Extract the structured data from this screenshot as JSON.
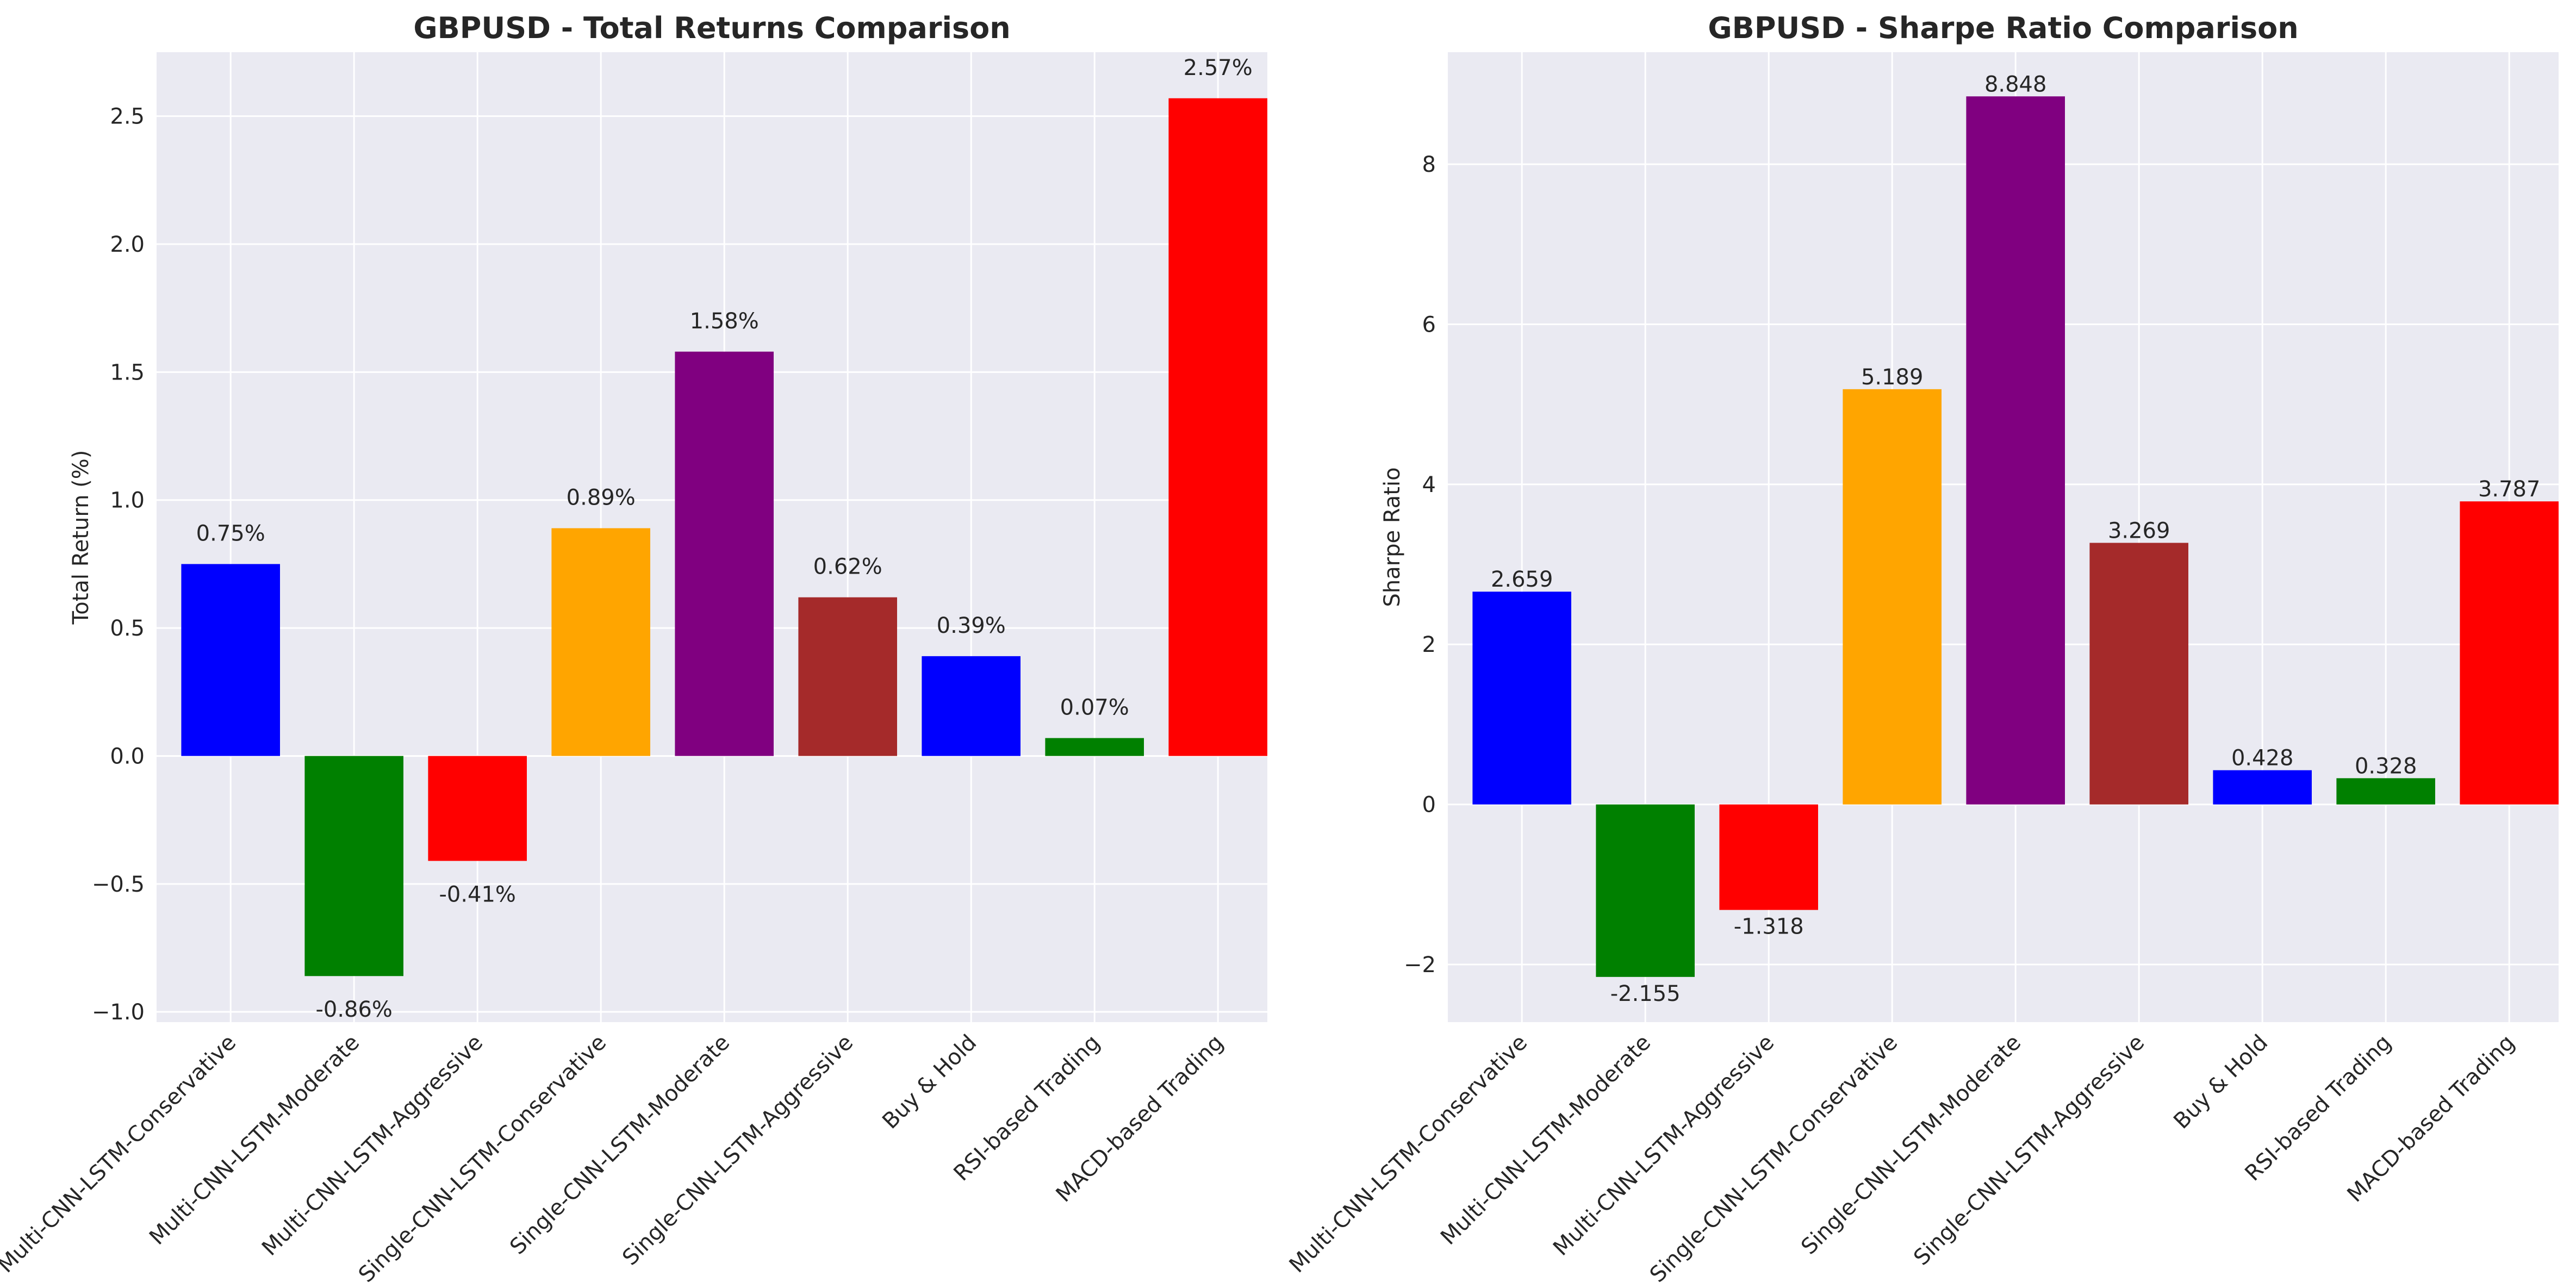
{
  "chart_data": [
    {
      "type": "bar",
      "title": "GBPUSD - Total Returns Comparison",
      "xlabel": "",
      "ylabel": "Total Return (%)",
      "categories": [
        "Multi-CNN-LSTM-Conservative",
        "Multi-CNN-LSTM-Moderate",
        "Multi-CNN-LSTM-Aggressive",
        "Single-CNN-LSTM-Conservative",
        "Single-CNN-LSTM-Moderate",
        "Single-CNN-LSTM-Aggressive",
        "Buy & Hold",
        "RSI-based Trading",
        "MACD-based Trading"
      ],
      "values": [
        0.75,
        -0.86,
        -0.41,
        0.89,
        1.58,
        0.62,
        0.39,
        0.07,
        2.57
      ],
      "value_labels": [
        "0.75%",
        "-0.86%",
        "-0.41%",
        "0.89%",
        "1.58%",
        "0.62%",
        "0.39%",
        "0.07%",
        "2.57%"
      ],
      "colors": [
        "#0000ff",
        "#008000",
        "#ff0000",
        "#ffa500",
        "#800080",
        "#a52a2a",
        "#0000ff",
        "#008000",
        "#ff0000"
      ],
      "ylim": [
        -1.04,
        2.75
      ],
      "yticks": [
        -1.0,
        -0.5,
        0.0,
        0.5,
        1.0,
        1.5,
        2.0,
        2.5
      ],
      "ytick_labels": [
        "−1.0",
        "−0.5",
        "0.0",
        "0.5",
        "1.0",
        "1.5",
        "2.0",
        "2.5"
      ],
      "grid": true
    },
    {
      "type": "bar",
      "title": "GBPUSD - Sharpe Ratio Comparison",
      "xlabel": "",
      "ylabel": "Sharpe Ratio",
      "categories": [
        "Multi-CNN-LSTM-Conservative",
        "Multi-CNN-LSTM-Moderate",
        "Multi-CNN-LSTM-Aggressive",
        "Single-CNN-LSTM-Conservative",
        "Single-CNN-LSTM-Moderate",
        "Single-CNN-LSTM-Aggressive",
        "Buy & Hold",
        "RSI-based Trading",
        "MACD-based Trading"
      ],
      "values": [
        2.659,
        -2.155,
        -1.318,
        5.189,
        8.848,
        3.269,
        0.428,
        0.328,
        3.787
      ],
      "value_labels": [
        "2.659",
        "-2.155",
        "-1.318",
        "5.189",
        "8.848",
        "3.269",
        "0.428",
        "0.328",
        "3.787"
      ],
      "colors": [
        "#0000ff",
        "#008000",
        "#ff0000",
        "#ffa500",
        "#800080",
        "#a52a2a",
        "#0000ff",
        "#008000",
        "#ff0000"
      ],
      "ylim": [
        -2.72,
        9.4
      ],
      "yticks": [
        -2,
        0,
        2,
        4,
        6,
        8
      ],
      "ytick_labels": [
        "−2",
        "0",
        "2",
        "4",
        "6",
        "8"
      ],
      "grid": true
    }
  ]
}
